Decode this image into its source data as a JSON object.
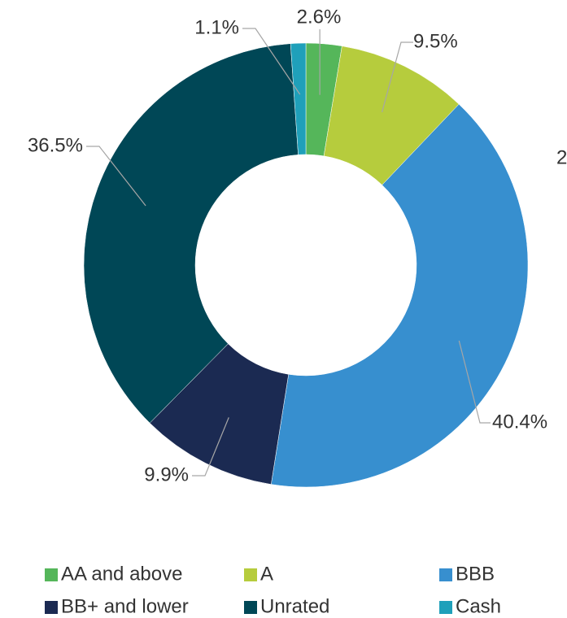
{
  "chart_data": {
    "type": "donut",
    "categories": [
      "AA and above",
      "A",
      "BBB",
      "BB+ and lower",
      "Unrated",
      "Cash"
    ],
    "values": [
      2.6,
      9.5,
      40.4,
      9.9,
      36.5,
      1.1
    ],
    "value_labels": [
      "2.6%",
      "9.5%",
      "40.4%",
      "9.9%",
      "36.5%",
      "1.1%"
    ],
    "colors": [
      "#55b65a",
      "#b6cc3d",
      "#378fcf",
      "#1b2a52",
      "#004756",
      "#1fa0ba"
    ],
    "annotations": [
      "2"
    ]
  }
}
